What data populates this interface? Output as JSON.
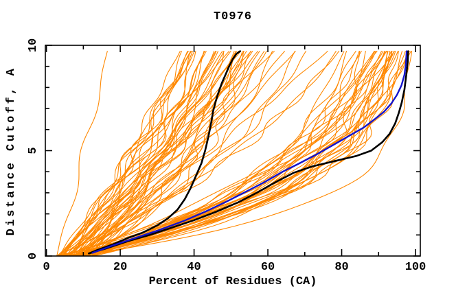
{
  "chart_data": {
    "type": "line",
    "title": "T0976",
    "xlabel": "Percent of Residues (CA)",
    "ylabel": "Distance Cutoff, A",
    "xlim": [
      0,
      100
    ],
    "ylim": [
      0,
      10
    ],
    "x_major_ticks": [
      0,
      20,
      40,
      60,
      80,
      100
    ],
    "x_tick_labels": [
      "0",
      "20",
      "40",
      "60",
      "80",
      "100"
    ],
    "x_minor_step": 10,
    "y_major_ticks": [
      0,
      5,
      10
    ],
    "y_tick_labels": [
      "0",
      "5",
      "10"
    ],
    "y_minor_step": 1,
    "grid": false,
    "legend": "none",
    "cutoff_max": 9.72,
    "colors": {
      "ensemble": "#ff8800",
      "highlight_black": "#000000",
      "highlight_blue": "#1414cc",
      "axis": "#000000",
      "background": "#ffffff"
    },
    "series": [
      {
        "name": "black-curve-steep",
        "color_key": "highlight_black",
        "width": 2.6,
        "points": [
          [
            11.5,
            0.12
          ],
          [
            14,
            0.3
          ],
          [
            18,
            0.55
          ],
          [
            22,
            0.85
          ],
          [
            26,
            1.1
          ],
          [
            30,
            1.45
          ],
          [
            33,
            1.8
          ],
          [
            35.5,
            2.2
          ],
          [
            37.5,
            2.7
          ],
          [
            39,
            3.2
          ],
          [
            40.5,
            3.8
          ],
          [
            42,
            4.4
          ],
          [
            43,
            5.0
          ],
          [
            43.8,
            5.6
          ],
          [
            44.5,
            6.2
          ],
          [
            45.2,
            6.9
          ],
          [
            45.8,
            7.3
          ],
          [
            46.5,
            7.7
          ],
          [
            47.5,
            8.2
          ],
          [
            48.5,
            8.6
          ],
          [
            49.5,
            9.0
          ],
          [
            50.5,
            9.35
          ],
          [
            51.5,
            9.6
          ],
          [
            52.5,
            9.72
          ]
        ]
      },
      {
        "name": "black-curve-right",
        "color_key": "highlight_black",
        "width": 2.6,
        "points": [
          [
            11.5,
            0.12
          ],
          [
            16,
            0.35
          ],
          [
            22,
            0.7
          ],
          [
            28,
            1.0
          ],
          [
            34,
            1.35
          ],
          [
            40,
            1.7
          ],
          [
            46,
            2.1
          ],
          [
            52,
            2.55
          ],
          [
            57,
            3.0
          ],
          [
            62,
            3.5
          ],
          [
            67,
            3.95
          ],
          [
            72,
            4.25
          ],
          [
            78,
            4.5
          ],
          [
            84,
            4.75
          ],
          [
            88,
            5.0
          ],
          [
            91,
            5.4
          ],
          [
            93,
            5.8
          ],
          [
            94.5,
            6.3
          ],
          [
            95.5,
            6.8
          ],
          [
            96.3,
            7.3
          ],
          [
            97,
            7.9
          ],
          [
            97.5,
            8.6
          ],
          [
            97.9,
            9.2
          ],
          [
            98,
            9.72
          ]
        ]
      },
      {
        "name": "blue-curve",
        "color_key": "highlight_blue",
        "width": 2.4,
        "points": [
          [
            12.5,
            0.15
          ],
          [
            18,
            0.5
          ],
          [
            24,
            0.85
          ],
          [
            30,
            1.2
          ],
          [
            37,
            1.65
          ],
          [
            43,
            2.1
          ],
          [
            49,
            2.6
          ],
          [
            54,
            3.05
          ],
          [
            59,
            3.5
          ],
          [
            64,
            4.0
          ],
          [
            68,
            4.35
          ],
          [
            73,
            4.8
          ],
          [
            78,
            5.3
          ],
          [
            82,
            5.7
          ],
          [
            86,
            6.1
          ],
          [
            89,
            6.5
          ],
          [
            91.5,
            6.85
          ],
          [
            93.5,
            7.25
          ],
          [
            95,
            7.65
          ],
          [
            96.2,
            8.1
          ],
          [
            97,
            8.6
          ],
          [
            97.4,
            9.1
          ],
          [
            97.6,
            9.72
          ]
        ]
      }
    ],
    "orange_models": {
      "count": 85,
      "color_key": "ensemble",
      "width": 1.1,
      "bottom_start_range": [
        2.5,
        13
      ],
      "top_end_range": [
        16.5,
        99
      ],
      "clusters": [
        {
          "center": 47,
          "spread": 7,
          "weight": 0.42
        },
        {
          "center": 91,
          "spread": 5,
          "weight": 0.3
        },
        {
          "center": 70,
          "spread": 16,
          "weight": 0.28
        }
      ],
      "envelope_left_top_percent": 16.5,
      "envelope_right_top_percent": 99
    }
  }
}
